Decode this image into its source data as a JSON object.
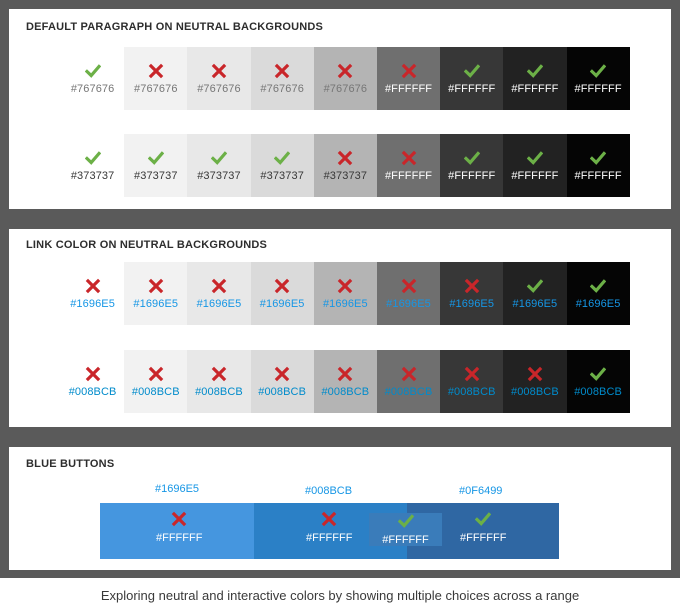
{
  "panels": {
    "paragraph": {
      "title": "DEFAULT PARAGRAPH ON NEUTRAL BACKGROUNDS",
      "rows": [
        {
          "cells": [
            {
              "bg": "#ffffff",
              "mark": "check",
              "label": "#767676",
              "color": "#767676"
            },
            {
              "bg": "#f2f2f2",
              "mark": "cross",
              "label": "#767676",
              "color": "#767676"
            },
            {
              "bg": "#e8e8e8",
              "mark": "cross",
              "label": "#767676",
              "color": "#767676"
            },
            {
              "bg": "#dadada",
              "mark": "cross",
              "label": "#767676",
              "color": "#767676"
            },
            {
              "bg": "#b4b4b4",
              "mark": "cross",
              "label": "#767676",
              "color": "#767676"
            },
            {
              "bg": "#6f6f6f",
              "mark": "cross",
              "label": "#FFFFFF",
              "color": "#FFFFFF"
            },
            {
              "bg": "#373737",
              "mark": "check",
              "label": "#FFFFFF",
              "color": "#FFFFFF"
            },
            {
              "bg": "#222222",
              "mark": "check",
              "label": "#FFFFFF",
              "color": "#FFFFFF"
            },
            {
              "bg": "#050505",
              "mark": "check",
              "label": "#FFFFFF",
              "color": "#FFFFFF"
            }
          ]
        },
        {
          "cells": [
            {
              "bg": "#ffffff",
              "mark": "check",
              "label": "#373737",
              "color": "#373737"
            },
            {
              "bg": "#f2f2f2",
              "mark": "check",
              "label": "#373737",
              "color": "#373737"
            },
            {
              "bg": "#e8e8e8",
              "mark": "check",
              "label": "#373737",
              "color": "#373737"
            },
            {
              "bg": "#dadada",
              "mark": "check",
              "label": "#373737",
              "color": "#373737"
            },
            {
              "bg": "#b4b4b4",
              "mark": "cross",
              "label": "#373737",
              "color": "#373737"
            },
            {
              "bg": "#6f6f6f",
              "mark": "cross",
              "label": "#FFFFFF",
              "color": "#FFFFFF"
            },
            {
              "bg": "#373737",
              "mark": "check",
              "label": "#FFFFFF",
              "color": "#FFFFFF"
            },
            {
              "bg": "#222222",
              "mark": "check",
              "label": "#FFFFFF",
              "color": "#FFFFFF"
            },
            {
              "bg": "#050505",
              "mark": "check",
              "label": "#FFFFFF",
              "color": "#FFFFFF"
            }
          ]
        }
      ]
    },
    "link": {
      "title": "LINK COLOR ON NEUTRAL BACKGROUNDS",
      "rows": [
        {
          "cells": [
            {
              "bg": "#ffffff",
              "mark": "cross",
              "label": "#1696E5",
              "color": "#1696E5"
            },
            {
              "bg": "#f2f2f2",
              "mark": "cross",
              "label": "#1696E5",
              "color": "#1696E5"
            },
            {
              "bg": "#e8e8e8",
              "mark": "cross",
              "label": "#1696E5",
              "color": "#1696E5"
            },
            {
              "bg": "#dadada",
              "mark": "cross",
              "label": "#1696E5",
              "color": "#1696E5"
            },
            {
              "bg": "#b4b4b4",
              "mark": "cross",
              "label": "#1696E5",
              "color": "#1696E5"
            },
            {
              "bg": "#6f6f6f",
              "mark": "cross",
              "label": "#1696E5",
              "color": "#1696E5"
            },
            {
              "bg": "#373737",
              "mark": "cross",
              "label": "#1696E5",
              "color": "#1696E5"
            },
            {
              "bg": "#222222",
              "mark": "check",
              "label": "#1696E5",
              "color": "#1696E5"
            },
            {
              "bg": "#050505",
              "mark": "check",
              "label": "#1696E5",
              "color": "#1696E5"
            }
          ]
        },
        {
          "cells": [
            {
              "bg": "#ffffff",
              "mark": "cross",
              "label": "#008BCB",
              "color": "#008BCB"
            },
            {
              "bg": "#f2f2f2",
              "mark": "cross",
              "label": "#008BCB",
              "color": "#008BCB"
            },
            {
              "bg": "#e8e8e8",
              "mark": "cross",
              "label": "#008BCB",
              "color": "#008BCB"
            },
            {
              "bg": "#dadada",
              "mark": "cross",
              "label": "#008BCB",
              "color": "#008BCB"
            },
            {
              "bg": "#b4b4b4",
              "mark": "cross",
              "label": "#008BCB",
              "color": "#008BCB"
            },
            {
              "bg": "#6f6f6f",
              "mark": "cross",
              "label": "#008BCB",
              "color": "#008BCB"
            },
            {
              "bg": "#373737",
              "mark": "cross",
              "label": "#008BCB",
              "color": "#008BCB"
            },
            {
              "bg": "#222222",
              "mark": "cross",
              "label": "#008BCB",
              "color": "#008BCB"
            },
            {
              "bg": "#050505",
              "mark": "check",
              "label": "#008BCB",
              "color": "#008BCB"
            }
          ]
        }
      ]
    },
    "buttons": {
      "title": "BLUE BUTTONS",
      "groups": [
        {
          "hex": "#1696E5",
          "bg": "#4596df"
        },
        {
          "hex": "#008BCB",
          "bg": "#2b80c6"
        },
        {
          "hex": "#0F6499",
          "bg": "#2f67a3"
        }
      ],
      "buttons": [
        {
          "mark": "cross",
          "label": "#FFFFFF"
        },
        {
          "mark": "cross",
          "label": "#FFFFFF"
        },
        {
          "mark": "check",
          "label": "#FFFFFF"
        },
        {
          "mark": "check",
          "label": "#FFFFFF"
        }
      ],
      "inner_bg": "#3a7cba"
    }
  },
  "colors": {
    "check": "#6cb047",
    "cross": "#c9262a"
  },
  "caption": "Exploring neutral and interactive colors by showing multiple choices across a range"
}
